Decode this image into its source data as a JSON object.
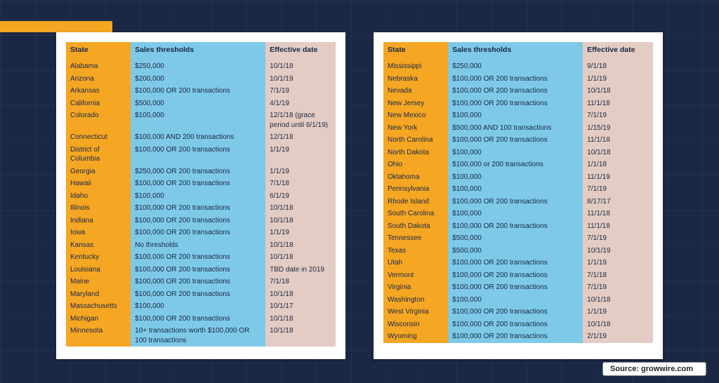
{
  "columns": {
    "state": "State",
    "thresholds": "Sales thresholds",
    "date": "Effective date"
  },
  "colors": {
    "page_bg": "#1a2845",
    "accent": "#f5a623",
    "col_state_bg": "#f5a623",
    "col_thresh_bg": "#7ec9e8",
    "col_date_bg": "#e3ccc3",
    "text": "#1a2845"
  },
  "source_label": "Source: growwire.com",
  "left_table": [
    {
      "state": "Alabama",
      "thresholds": "$250,000",
      "date": "10/1/18"
    },
    {
      "state": "Arizona",
      "thresholds": "$200,000",
      "date": "10/1/19"
    },
    {
      "state": "Arkansas",
      "thresholds": "$100,000 OR 200 transactions",
      "date": "7/1/19"
    },
    {
      "state": "California",
      "thresholds": "$500,000",
      "date": "4/1/19"
    },
    {
      "state": "Colorado",
      "thresholds": "$100,000",
      "date": "12/1/18 (grace period until 6/1/19)"
    },
    {
      "state": "Connecticut",
      "thresholds": "$100,000 AND 200 transactions",
      "date": "12/1/18"
    },
    {
      "state": "District of Columbia",
      "thresholds": "$100,000 OR 200 transactions",
      "date": "1/1/19"
    },
    {
      "state": "Georgia",
      "thresholds": "$250,000 OR 200 transactions",
      "date": "1/1/19"
    },
    {
      "state": "Hawaii",
      "thresholds": "$100,000 OR 200 transactions",
      "date": "7/1/18"
    },
    {
      "state": "Idaho",
      "thresholds": "$100,000",
      "date": "6/1/19"
    },
    {
      "state": "Illinois",
      "thresholds": "$100,000 OR 200 transactions",
      "date": "10/1/18"
    },
    {
      "state": "Indiana",
      "thresholds": "$100,000 OR 200 transactions",
      "date": "10/1/18"
    },
    {
      "state": "Iowa",
      "thresholds": "$100,000 OR 200 transactions",
      "date": "1/1/19"
    },
    {
      "state": "Kansas",
      "thresholds": "No thresholds",
      "date": "10/1/18"
    },
    {
      "state": "Kentucky",
      "thresholds": "$100,000 OR 200 transactions",
      "date": "10/1/18"
    },
    {
      "state": "Louisiana",
      "thresholds": "$100,000 OR 200 transactions",
      "date": "TBD date in 2019"
    },
    {
      "state": "Maine",
      "thresholds": "$100,000 OR 200 transactions",
      "date": "7/1/18"
    },
    {
      "state": "Maryland",
      "thresholds": "$100,000 OR 200 transactions",
      "date": "10/1/18"
    },
    {
      "state": "Massachusetts",
      "thresholds": "$100,000",
      "date": "10/1/17"
    },
    {
      "state": "Michigan",
      "thresholds": "$100,000 OR 200 transactions",
      "date": "10/1/18"
    },
    {
      "state": "Minnesota",
      "thresholds": "10+ transactions worth $100,000 OR 100 transactions",
      "date": "10/1/18"
    }
  ],
  "right_table": [
    {
      "state": "Mississippi",
      "thresholds": "$250,000",
      "date": "9/1/18"
    },
    {
      "state": "Nebraska",
      "thresholds": "$100,000 OR 200 transactions",
      "date": "1/1/19"
    },
    {
      "state": "Nevada",
      "thresholds": "$100,000 OR 200 transactions",
      "date": "10/1/18"
    },
    {
      "state": "New Jersey",
      "thresholds": "$100,000 OR 200 transactions",
      "date": "11/1/18"
    },
    {
      "state": "New Mexico",
      "thresholds": "$100,000",
      "date": "7/1/19"
    },
    {
      "state": "New York",
      "thresholds": "$500,000 AND 100 transactions",
      "date": "1/15/19"
    },
    {
      "state": "North Carolina",
      "thresholds": "$100,000 OR 200 transactions",
      "date": "11/1/18"
    },
    {
      "state": "North Dakota",
      "thresholds": "$100,000",
      "date": "10/1/18"
    },
    {
      "state": "Ohio",
      "thresholds": "$100,000 or 200 transactions",
      "date": "1/1/18"
    },
    {
      "state": "Oklahoma",
      "thresholds": "$100,000",
      "date": "11/1/19"
    },
    {
      "state": "Pennsylvania",
      "thresholds": "$100,000",
      "date": "7/1/19"
    },
    {
      "state": "Rhode Island",
      "thresholds": "$100,000 OR 200 transactions",
      "date": "8/17/17"
    },
    {
      "state": "South Carolina",
      "thresholds": "$100,000",
      "date": "11/1/18"
    },
    {
      "state": "South Dakota",
      "thresholds": "$100,000 OR 200 transactions",
      "date": "11/1/18"
    },
    {
      "state": "Tennessee",
      "thresholds": "$500,000",
      "date": "7/1/19"
    },
    {
      "state": "Texas",
      "thresholds": "$500,000",
      "date": "10/1/19"
    },
    {
      "state": "Utah",
      "thresholds": "$100,000 OR 200 transactions",
      "date": "1/1/19"
    },
    {
      "state": "Vermont",
      "thresholds": "$100,000 OR 200 transactions",
      "date": "7/1/18"
    },
    {
      "state": "Virginia",
      "thresholds": "$100,000 OR 200 transactions",
      "date": "7/1/19"
    },
    {
      "state": "Washington",
      "thresholds": "$100,000",
      "date": "10/1/18"
    },
    {
      "state": "West Virginia",
      "thresholds": "$100,000 OR 200 transactions",
      "date": "1/1/19"
    },
    {
      "state": "Wisconsin",
      "thresholds": "$100,000 OR 200 transactions",
      "date": "10/1/18"
    },
    {
      "state": "Wyoming",
      "thresholds": "$100,000 OR 200 transactions",
      "date": "2/1/19"
    }
  ]
}
